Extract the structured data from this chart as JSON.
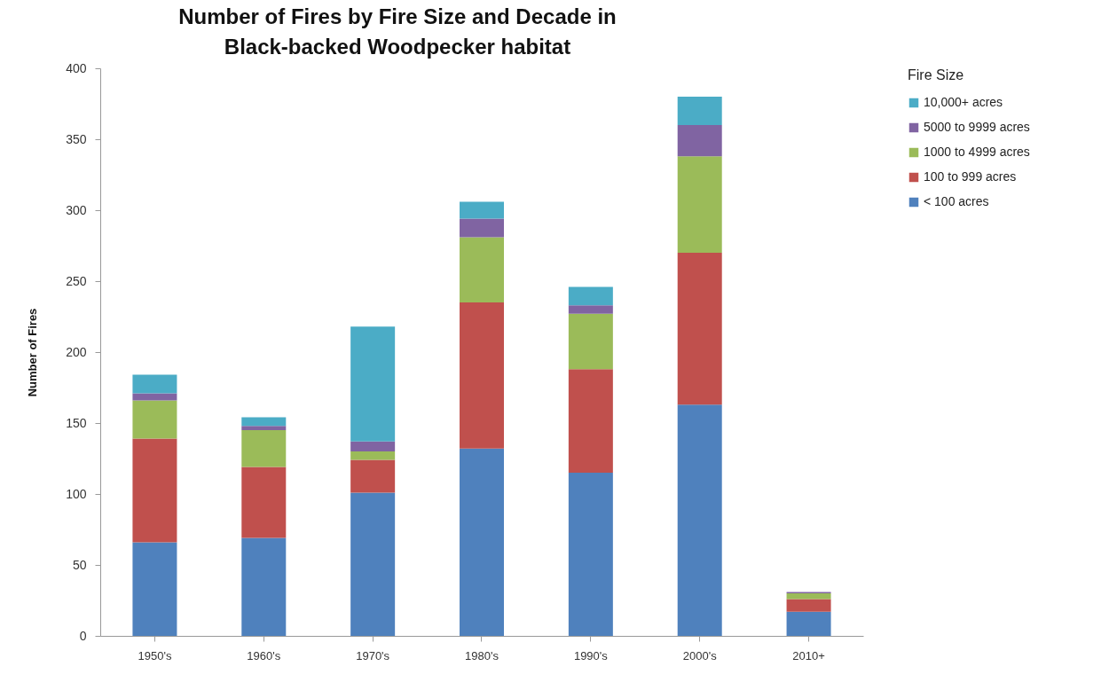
{
  "chart_data": {
    "type": "bar",
    "stacked": true,
    "title": "Number of Fires by Fire Size and Decade in Black-backed Woodpecker habitat",
    "ylabel": "Number of Fires",
    "legend_title": "Fire Size",
    "categories": [
      "1950's",
      "1960's",
      "1970's",
      "1980's",
      "1990's",
      "2000's",
      "2010+"
    ],
    "series": [
      {
        "name": "< 100 acres",
        "color": "#4f81bd",
        "values": [
          66,
          69,
          101,
          132,
          115,
          163,
          17
        ]
      },
      {
        "name": "100 to 999 acres",
        "color": "#c0504d",
        "values": [
          73,
          50,
          23,
          103,
          73,
          107,
          9
        ]
      },
      {
        "name": "1000 to 4999 acres",
        "color": "#9bbb59",
        "values": [
          27,
          26,
          6,
          46,
          39,
          68,
          4
        ]
      },
      {
        "name": "5000 to 9999 acres",
        "color": "#8064a2",
        "values": [
          5,
          3,
          7,
          13,
          6,
          22,
          1
        ]
      },
      {
        "name": "10,000+ acres",
        "color": "#4bacc6",
        "values": [
          13,
          6,
          81,
          12,
          13,
          20,
          null
        ]
      }
    ],
    "ylim": [
      0,
      400
    ],
    "yticks": [
      0,
      50,
      100,
      150,
      200,
      250,
      300,
      350,
      400
    ],
    "legend": "right"
  }
}
